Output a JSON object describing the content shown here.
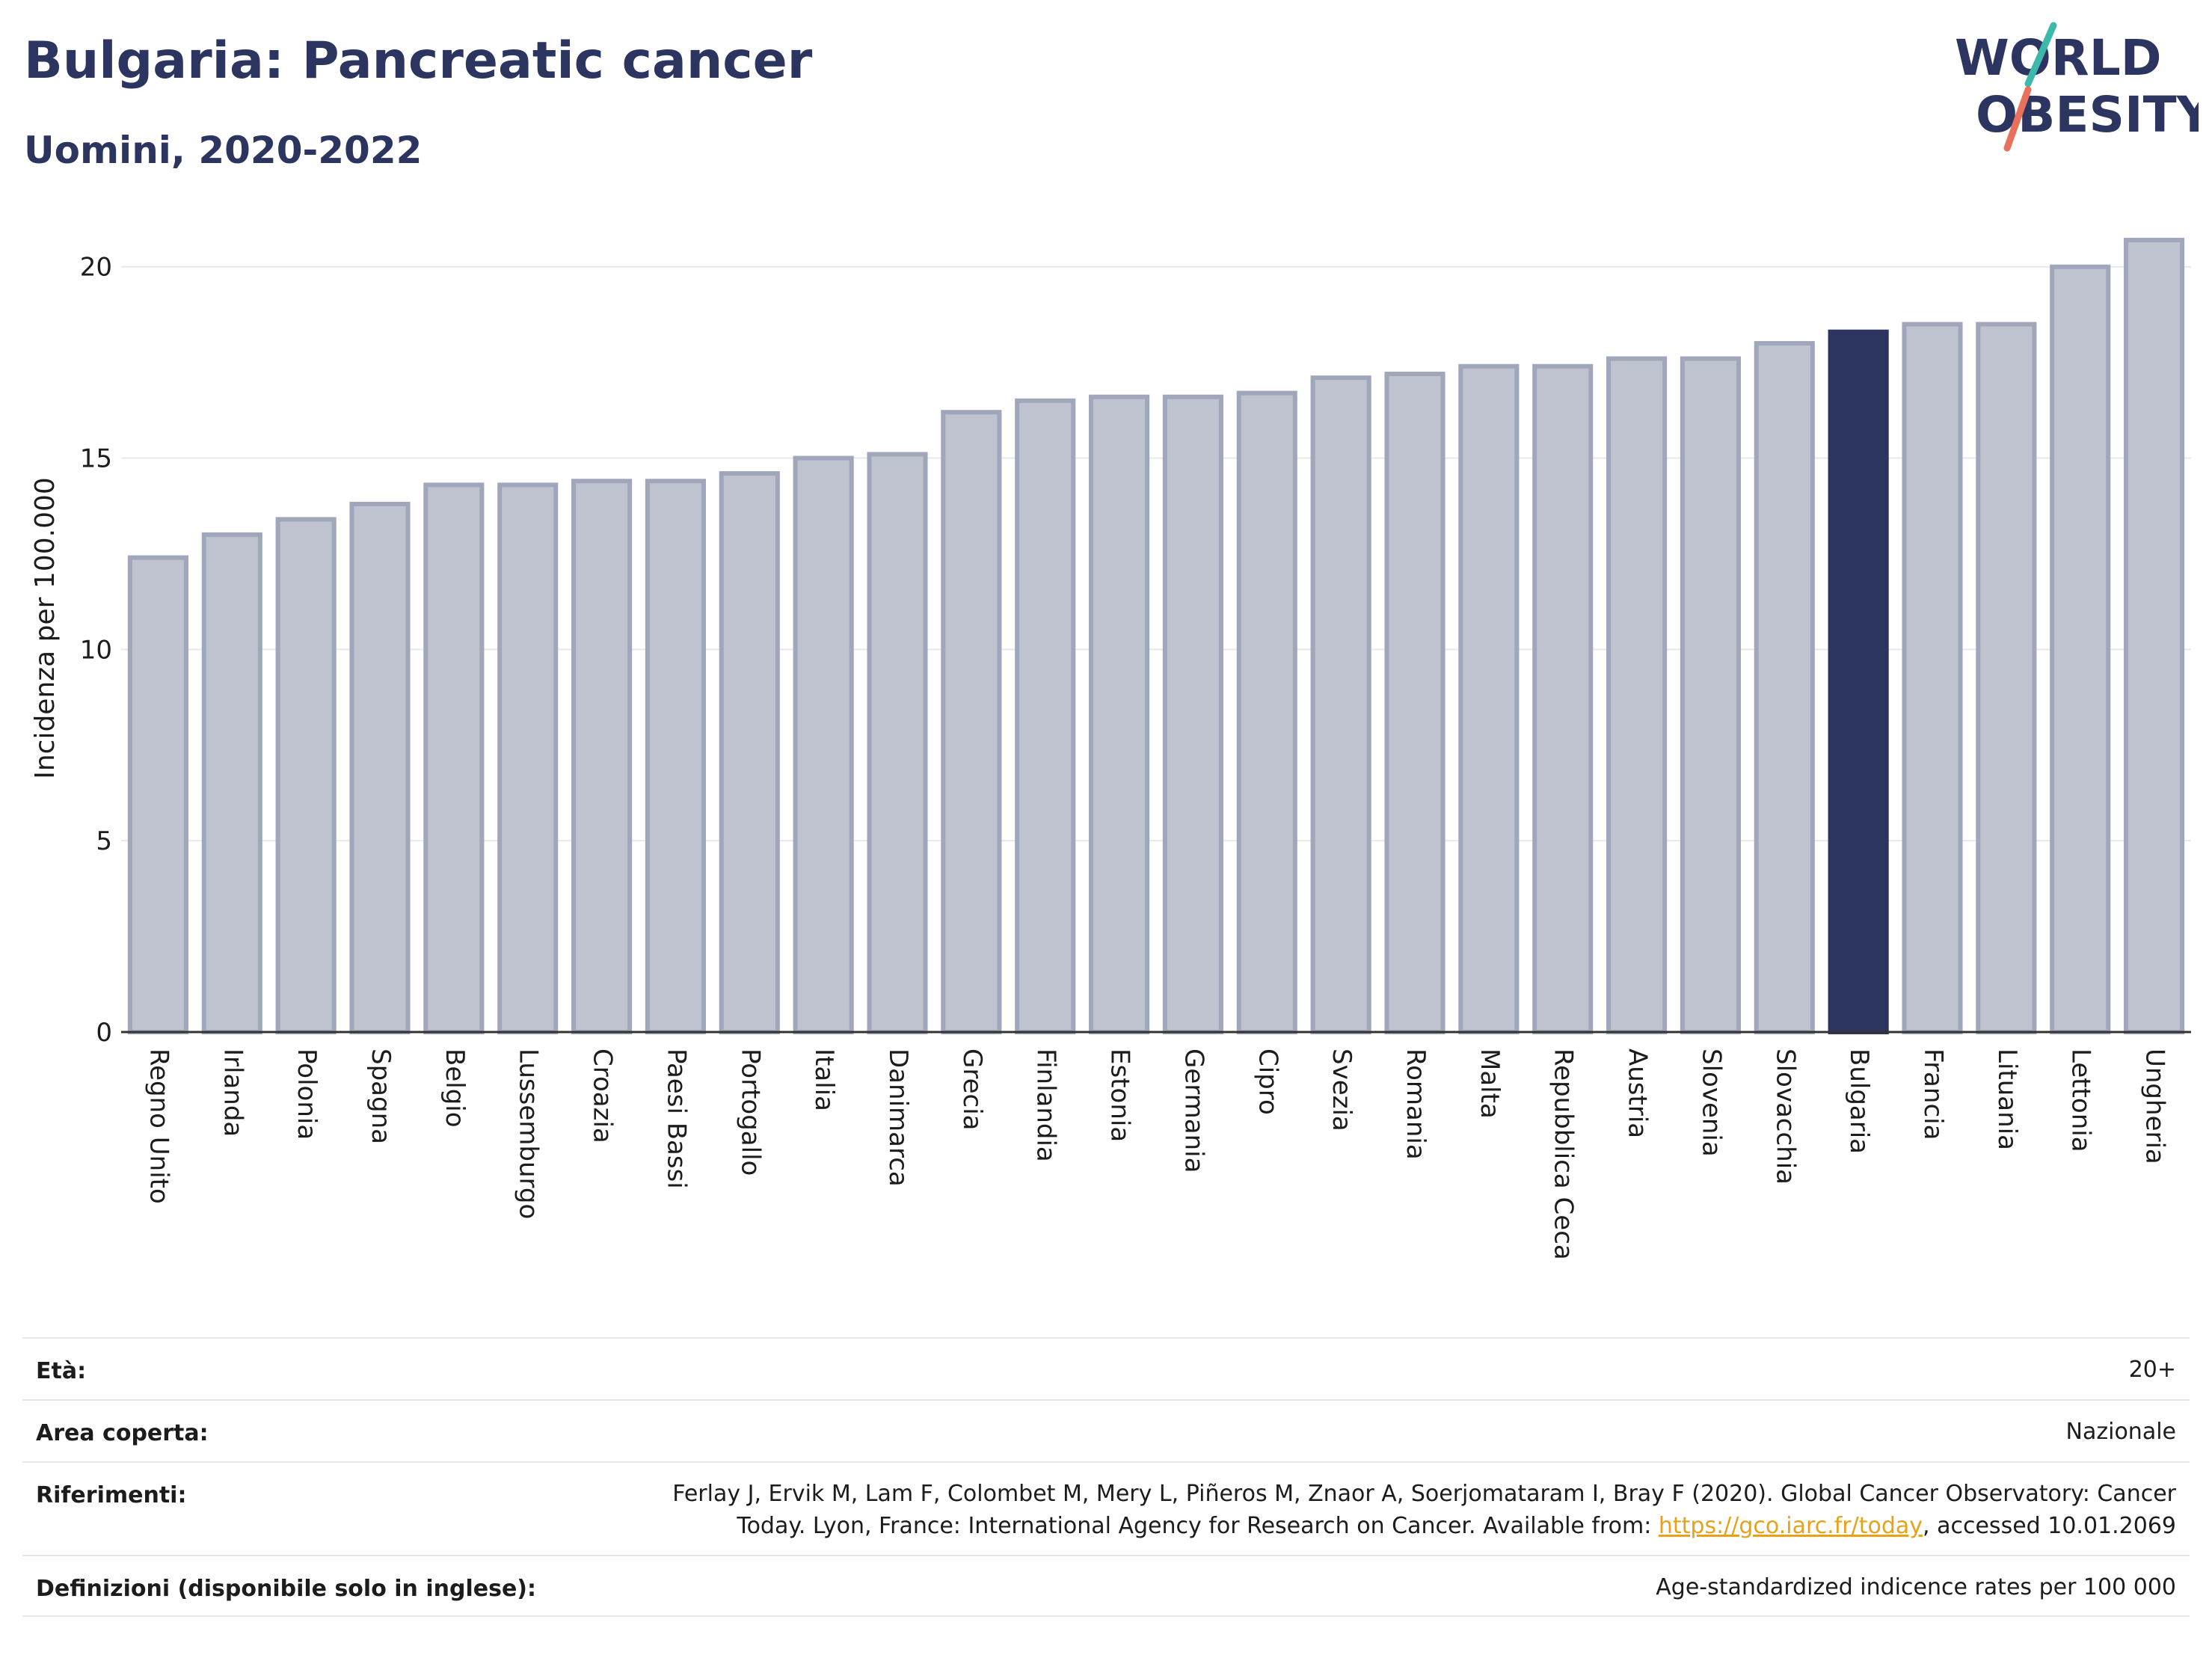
{
  "header": {
    "title": "Bulgaria: Pancreatic cancer",
    "subtitle": "Uomini, 2020-2022",
    "logo_line1": "WORLD",
    "logo_line2": "OBESITY"
  },
  "chart_data": {
    "type": "bar",
    "ylabel": "Incidenza per 100.000",
    "ylim": [
      0,
      21.5
    ],
    "yticks": [
      0,
      5,
      10,
      15,
      20
    ],
    "grid": true,
    "highlight": "Bulgaria",
    "categories": [
      "Regno Unito",
      "Irlanda",
      "Polonia",
      "Spagna",
      "Belgio",
      "Lussemburgo",
      "Croazia",
      "Paesi Bassi",
      "Portogallo",
      "Italia",
      "Danimarca",
      "Grecia",
      "Finlandia",
      "Estonia",
      "Germania",
      "Cipro",
      "Svezia",
      "Romania",
      "Malta",
      "Repubblica Ceca",
      "Austria",
      "Slovenia",
      "Slovacchia",
      "Bulgaria",
      "Francia",
      "Lituania",
      "Lettonia",
      "Ungheria"
    ],
    "values": [
      12.4,
      13.0,
      13.4,
      13.8,
      14.3,
      14.3,
      14.4,
      14.4,
      14.6,
      15.0,
      15.1,
      16.2,
      16.5,
      16.6,
      16.6,
      16.7,
      17.1,
      17.2,
      17.4,
      17.4,
      17.6,
      17.6,
      18.0,
      18.3,
      18.5,
      18.5,
      20.0,
      20.7
    ]
  },
  "colors": {
    "bar_fill": "#bfc3cf",
    "bar_stroke": "#a1a7ba",
    "highlight": "#2b3560",
    "axis": "#333333",
    "grid": "#e6e8ef",
    "title": "#2b3560"
  },
  "footer": {
    "age_label": "Età:",
    "age_value": "20+",
    "area_label": "Area coperta:",
    "area_value": "Nazionale",
    "refs_label": "Riferimenti:",
    "refs_line1": "Ferlay J, Ervik M, Lam F, Colombet M, Mery L, Piñeros M, Znaor A, Soerjomataram I, Bray F (2020). Global Cancer Observatory: Cancer",
    "refs_line2_pre": "Today. Lyon, France: International Agency for Research on Cancer. Available from: ",
    "refs_link": "https://gco.iarc.fr/today",
    "refs_line2_post": ", accessed 10.01.2069",
    "defs_label": "Definizioni (disponibile solo in inglese):",
    "defs_value": "Age-standardized indicence rates per 100 000"
  }
}
